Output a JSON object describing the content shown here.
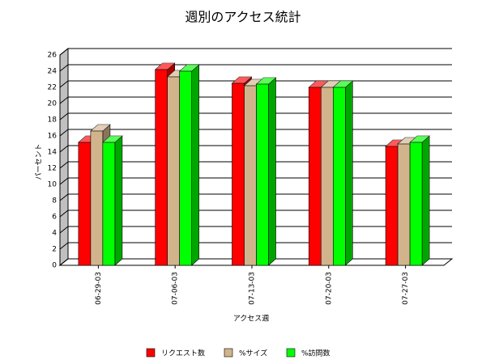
{
  "chart_data": {
    "type": "bar3d",
    "title": "週別のアクセス統計",
    "x_label": "アクセス週",
    "y_label": "パーセント",
    "categories": [
      "06-29-03",
      "07-06-03",
      "07-13-03",
      "07-20-03",
      "07-27-03"
    ],
    "series": [
      {
        "name": "リクエスト数",
        "color": "#ff0000",
        "values": [
          15.2,
          24.2,
          22.5,
          22.0,
          14.7
        ]
      },
      {
        "name": "%サイズ",
        "color": "#d2b48c",
        "values": [
          16.6,
          23.3,
          22.2,
          22.0,
          15.0
        ]
      },
      {
        "name": "%訪問数",
        "color": "#00ff00",
        "values": [
          15.2,
          24.0,
          22.4,
          22.0,
          15.2
        ]
      }
    ],
    "ylim": [
      0,
      26
    ],
    "yticks": [
      0,
      2,
      4,
      6,
      8,
      10,
      12,
      14,
      16,
      18,
      20,
      22,
      24,
      26
    ],
    "grid": true
  }
}
